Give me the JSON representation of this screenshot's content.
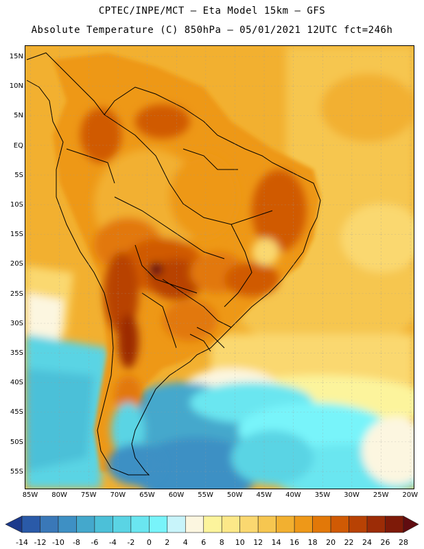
{
  "header": {
    "line1": "CPTEC/INPE/MCT –  Eta Model 15km – GFS",
    "line2": "Absolute Temperature (C) 850hPa – 05/01/2021 12UTC fct=246h"
  },
  "map": {
    "lat_labels": [
      "15N",
      "10N",
      "5N",
      "EQ",
      "5S",
      "10S",
      "15S",
      "20S",
      "25S",
      "30S",
      "35S",
      "40S",
      "45S",
      "50S",
      "55S"
    ],
    "lon_labels": [
      "85W",
      "80W",
      "75W",
      "70W",
      "65W",
      "60W",
      "55W",
      "50W",
      "45W",
      "40W",
      "35W",
      "30W",
      "25W",
      "20W"
    ]
  },
  "legend": {
    "ticks": [
      "-14",
      "-12",
      "-10",
      "-8",
      "-6",
      "-4",
      "-2",
      "0",
      "2",
      "4",
      "6",
      "8",
      "10",
      "12",
      "14",
      "16",
      "18",
      "20",
      "22",
      "24",
      "26",
      "28"
    ],
    "colors": [
      "#1c3a8c",
      "#2a5aa8",
      "#3a78b8",
      "#3e90c4",
      "#44a8cc",
      "#4cc0d8",
      "#5ad4e4",
      "#6ae6f0",
      "#78f4fa",
      "#c8f4fa",
      "#fcf6e0",
      "#fcf49c",
      "#fce888",
      "#fad870",
      "#f6c650",
      "#f2b030",
      "#ee9818",
      "#e27808",
      "#d05a04",
      "#b84204",
      "#9c2c06",
      "#7e1a08",
      "#600c10"
    ]
  }
}
